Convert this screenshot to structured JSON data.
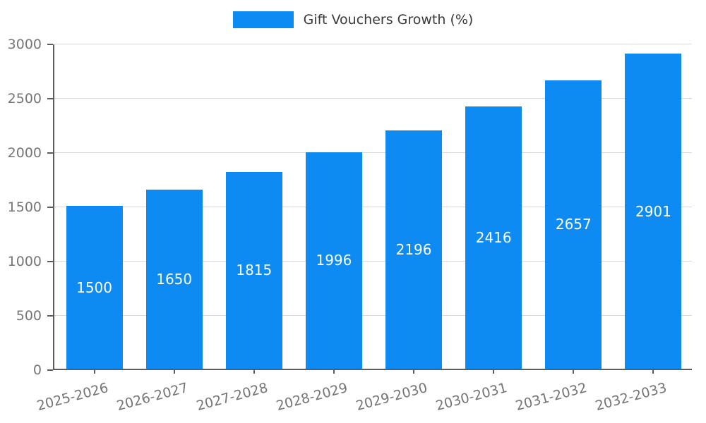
{
  "chart_data": {
    "type": "bar",
    "title": "Gift Vouchers Growth (%)",
    "categories": [
      "2025-2026",
      "2026-2027",
      "2027-2028",
      "2028-2029",
      "2029-2030",
      "2030-2031",
      "2031-2032",
      "2032-2033"
    ],
    "values": [
      1500,
      1650,
      1815,
      1996,
      2196,
      2416,
      2657,
      2901
    ],
    "xlabel": "",
    "ylabel": "",
    "ylim": [
      0,
      3000
    ],
    "yticks": [
      0,
      500,
      1000,
      1500,
      2000,
      2500,
      3000
    ],
    "grid": true,
    "legend_position": "top-center",
    "bar_color": "#0d8bf2",
    "value_label_color": "#ffffff",
    "tick_label_color": "#757575",
    "legend_text_color": "#3a3a3a"
  }
}
